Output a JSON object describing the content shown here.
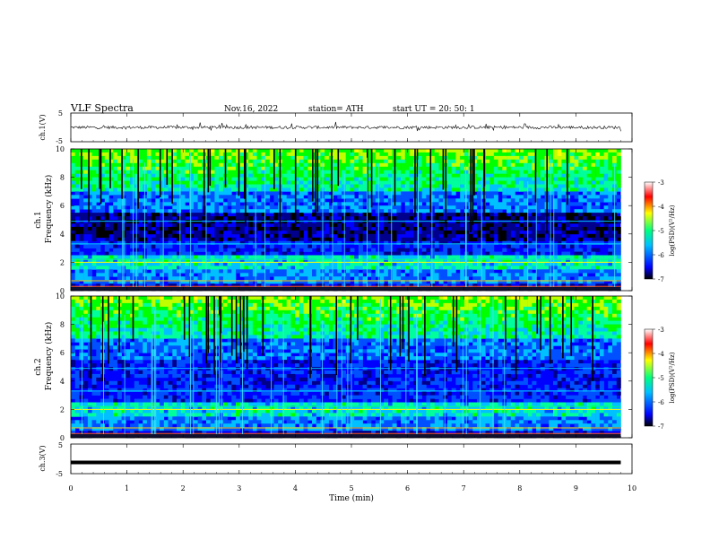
{
  "header": {
    "title": "VLF  Spectra",
    "date": "Nov.16, 2022",
    "station": "station= ATH",
    "start": "start  UT  =    20: 50: 1"
  },
  "chart_data": [
    {
      "type": "line",
      "panel": "ch1-waveform",
      "ylabel": "ch.1(V)",
      "ylim": [
        -5,
        5
      ],
      "yticks": [
        "5",
        "-5"
      ],
      "xlim": [
        0,
        10
      ],
      "baseline": 0,
      "amplitude_range": [
        -1.5,
        1.2
      ]
    },
    {
      "type": "heatmap",
      "panel": "ch1-spectrogram",
      "ylabel": "ch.1\nFrequency (kHz)",
      "ylim": [
        0,
        10
      ],
      "yticks": [
        "0",
        "2",
        "4",
        "6",
        "8",
        "10"
      ],
      "xlim": [
        0,
        10
      ],
      "colorbar": {
        "label": "log(PSD)(V²/Hz)",
        "range": [
          -7,
          -3
        ],
        "ticks": [
          "-3",
          "-4",
          "-5",
          "-6",
          "-7"
        ],
        "colors": [
          "#000000",
          "#0000ff",
          "#00c0ff",
          "#00ff80",
          "#ffff00",
          "#ff0000",
          "#ffffff"
        ]
      }
    },
    {
      "type": "heatmap",
      "panel": "ch2-spectrogram",
      "ylabel": "ch.2\nFrequency (kHz)",
      "ylim": [
        0,
        10
      ],
      "yticks": [
        "0",
        "2",
        "4",
        "6",
        "8",
        "10"
      ],
      "xlim": [
        0,
        10
      ],
      "colorbar": {
        "label": "log(PSD)(V²/Hz)",
        "range": [
          -7,
          -3
        ],
        "ticks": [
          "-3",
          "-4",
          "-5",
          "-6",
          "-7"
        ],
        "colors": [
          "#000000",
          "#0000ff",
          "#00c0ff",
          "#00ff80",
          "#ffff00",
          "#ff0000",
          "#ffffff"
        ]
      }
    },
    {
      "type": "line",
      "panel": "ch3-waveform",
      "ylabel": "ch.3(V)",
      "ylim": [
        -5,
        5
      ],
      "yticks": [
        "5",
        "-5"
      ],
      "xlim": [
        0,
        10
      ],
      "baseline": -1.2
    }
  ],
  "xaxis": {
    "label": "Time  (min)",
    "ticks": [
      "0",
      "1",
      "2",
      "3",
      "4",
      "5",
      "6",
      "7",
      "8",
      "9",
      "10"
    ]
  }
}
